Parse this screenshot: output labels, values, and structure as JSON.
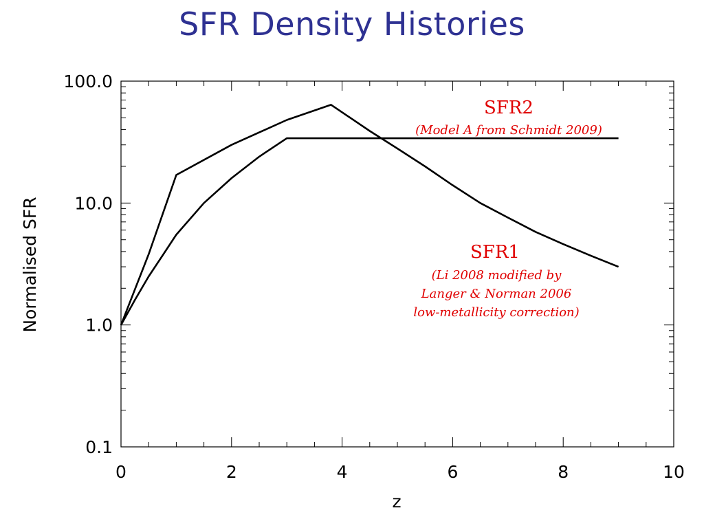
{
  "slide": {
    "title": "SFR Density Histories"
  },
  "chart_data": {
    "type": "line",
    "title": "",
    "xlabel": "z",
    "ylabel": "Normalised  SFR",
    "xlim": [
      0,
      10
    ],
    "ylim": [
      0.1,
      100
    ],
    "yscale": "log",
    "grid": false,
    "x_ticks": [
      0,
      2,
      4,
      6,
      8,
      10
    ],
    "x_tick_labels": [
      "0",
      "2",
      "4",
      "6",
      "8",
      "10"
    ],
    "y_ticks": [
      0.1,
      1,
      10,
      100
    ],
    "y_tick_labels": [
      "0.1",
      "1.0",
      "10.0",
      "100.0"
    ],
    "line_color": "#000000",
    "annotation_color": "#e00000",
    "series": [
      {
        "id": "sfr1",
        "points": [
          [
            0,
            1.0
          ],
          [
            0.5,
            3.8
          ],
          [
            1.0,
            17.0
          ],
          [
            2.0,
            30.0
          ],
          [
            3.0,
            48.0
          ],
          [
            3.8,
            64.0
          ],
          [
            4.5,
            39.0
          ],
          [
            5.0,
            28.0
          ],
          [
            5.5,
            20.0
          ],
          [
            6.0,
            14.0
          ],
          [
            6.5,
            10.0
          ],
          [
            7.0,
            7.6
          ],
          [
            7.5,
            5.8
          ],
          [
            8.0,
            4.6
          ],
          [
            8.5,
            3.7
          ],
          [
            9.0,
            3.0
          ]
        ]
      },
      {
        "id": "sfr2",
        "points": [
          [
            0,
            1.0
          ],
          [
            0.25,
            1.6
          ],
          [
            0.5,
            2.5
          ],
          [
            0.75,
            3.7
          ],
          [
            1.0,
            5.5
          ],
          [
            1.5,
            10.0
          ],
          [
            2.0,
            16.0
          ],
          [
            2.5,
            24.0
          ],
          [
            3.0,
            34.0
          ],
          [
            4.0,
            34.0
          ],
          [
            5.0,
            34.0
          ],
          [
            6.0,
            34.0
          ],
          [
            7.0,
            34.0
          ],
          [
            8.0,
            34.0
          ],
          [
            9.0,
            34.0
          ]
        ]
      }
    ],
    "annotations": [
      {
        "id": "sfr2",
        "title": "SFR2",
        "lines": [
          "(Model A from Schmidt 2009)"
        ]
      },
      {
        "id": "sfr1",
        "title": "SFR1",
        "lines": [
          "(Li 2008 modified by",
          "Langer & Norman 2006",
          "low-metallicity correction)"
        ]
      }
    ]
  }
}
